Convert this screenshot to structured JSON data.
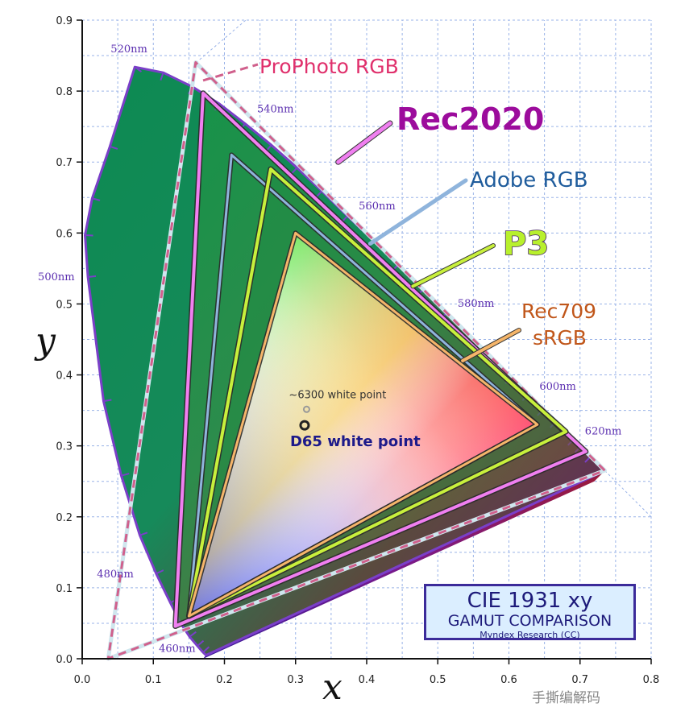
{
  "chart_data": {
    "type": "scatter",
    "title": "CIE 1931 xy",
    "subtitle": "GAMUT COMPARISON",
    "credit": "Myndex Research (CC)",
    "xlabel": "x",
    "ylabel": "y",
    "xlim": [
      0,
      0.8
    ],
    "ylim": [
      0,
      0.9
    ],
    "grid": true,
    "x_ticks": [
      "0.0",
      "0.1",
      "0.2",
      "0.3",
      "0.4",
      "0.5",
      "0.6",
      "0.7",
      "0.8"
    ],
    "y_ticks": [
      "0.0",
      "0.1",
      "0.2",
      "0.3",
      "0.4",
      "0.5",
      "0.6",
      "0.7",
      "0.8",
      "0.9"
    ],
    "spectral_locus": [
      [
        0.174,
        0.005
      ],
      [
        0.17,
        0.009
      ],
      [
        0.162,
        0.018
      ],
      [
        0.151,
        0.031
      ],
      [
        0.139,
        0.049
      ],
      [
        0.124,
        0.079
      ],
      [
        0.104,
        0.12
      ],
      [
        0.081,
        0.174
      ],
      [
        0.055,
        0.258
      ],
      [
        0.03,
        0.363
      ],
      [
        0.008,
        0.538
      ],
      [
        0.004,
        0.597
      ],
      [
        0.014,
        0.649
      ],
      [
        0.039,
        0.722
      ],
      [
        0.074,
        0.834
      ],
      [
        0.114,
        0.826
      ],
      [
        0.155,
        0.806
      ],
      [
        0.193,
        0.782
      ],
      [
        0.229,
        0.754
      ],
      [
        0.266,
        0.724
      ],
      [
        0.302,
        0.692
      ],
      [
        0.337,
        0.659
      ],
      [
        0.373,
        0.624
      ],
      [
        0.409,
        0.59
      ],
      [
        0.444,
        0.555
      ],
      [
        0.479,
        0.52
      ],
      [
        0.512,
        0.487
      ],
      [
        0.545,
        0.454
      ],
      [
        0.575,
        0.424
      ],
      [
        0.603,
        0.396
      ],
      [
        0.627,
        0.372
      ],
      [
        0.648,
        0.351
      ],
      [
        0.666,
        0.334
      ],
      [
        0.68,
        0.32
      ],
      [
        0.691,
        0.309
      ],
      [
        0.701,
        0.299
      ],
      [
        0.715,
        0.285
      ],
      [
        0.735,
        0.265
      ]
    ],
    "wavelength_labels": [
      {
        "label": "460nm",
        "x": 0.144,
        "y": 0.03
      },
      {
        "label": "480nm",
        "x": 0.091,
        "y": 0.133
      },
      {
        "label": "500nm",
        "x": 0.008,
        "y": 0.538
      },
      {
        "label": "520nm",
        "x": 0.074,
        "y": 0.834
      },
      {
        "label": "540nm",
        "x": 0.23,
        "y": 0.754
      },
      {
        "label": "560nm",
        "x": 0.373,
        "y": 0.624
      },
      {
        "label": "580nm",
        "x": 0.512,
        "y": 0.487
      },
      {
        "label": "600nm",
        "x": 0.627,
        "y": 0.372
      },
      {
        "label": "620nm",
        "x": 0.691,
        "y": 0.309
      }
    ],
    "series": [
      {
        "name": "ProPhoto RGB",
        "color": "#d0608c",
        "points": [
          [
            0.7347,
            0.2653
          ],
          [
            0.1596,
            0.8404
          ],
          [
            0.0366,
            0.0001
          ]
        ]
      },
      {
        "name": "Rec2020",
        "color": "#f07ff0",
        "points": [
          [
            0.708,
            0.292
          ],
          [
            0.17,
            0.797
          ],
          [
            0.131,
            0.046
          ]
        ]
      },
      {
        "name": "Adobe RGB",
        "color": "#8fb4dc",
        "points": [
          [
            0.64,
            0.33
          ],
          [
            0.21,
            0.71
          ],
          [
            0.15,
            0.06
          ]
        ]
      },
      {
        "name": "P3",
        "color": "#c8f03c",
        "points": [
          [
            0.68,
            0.32
          ],
          [
            0.265,
            0.69
          ],
          [
            0.15,
            0.06
          ]
        ]
      },
      {
        "name": "Rec709 sRGB",
        "color": "#f5b56a",
        "points": [
          [
            0.64,
            0.33
          ],
          [
            0.3,
            0.6
          ],
          [
            0.15,
            0.06
          ]
        ]
      }
    ],
    "white_points": [
      {
        "label": "~6300 white point",
        "x": 0.3155,
        "y": 0.3515,
        "color": "#999999"
      },
      {
        "label": "D65 white point",
        "x": 0.3127,
        "y": 0.329,
        "color": "#222222"
      }
    ],
    "series_labels": {
      "prophoto": "ProPhoto RGB",
      "rec2020": "Rec2020",
      "adobe": "Adobe RGB",
      "p3": "P3",
      "rec709_line1": "Rec709",
      "rec709_line2": "sRGB"
    },
    "series_label_colors": {
      "prophoto": "#e0306c",
      "rec2020": "#9c0c9c",
      "adobe": "#1f5c9c",
      "p3": "#b8f02c",
      "rec709": "#c0561a"
    }
  },
  "watermark": "手撕编解码"
}
